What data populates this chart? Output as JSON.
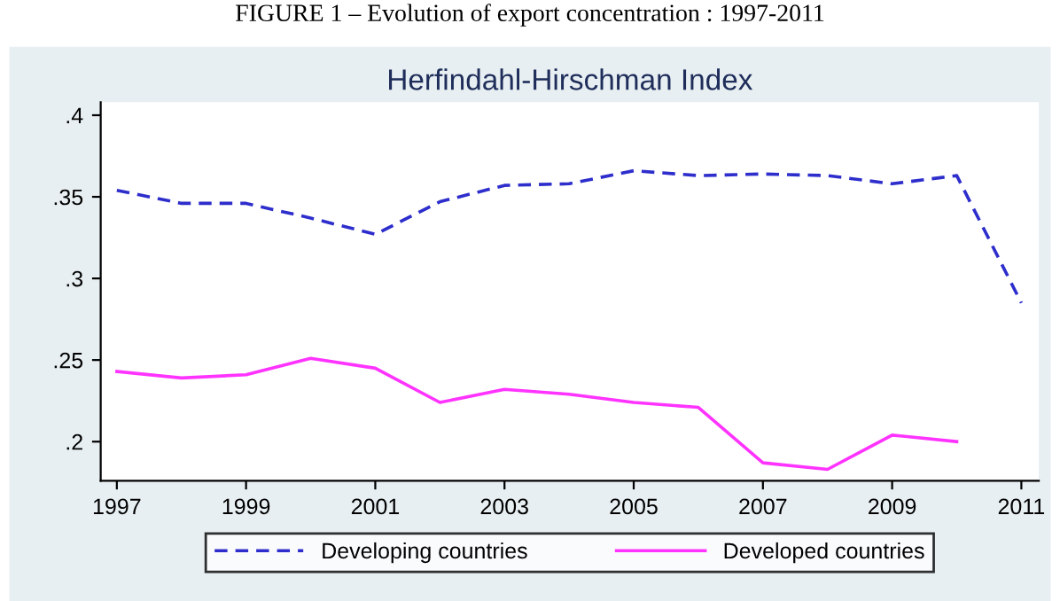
{
  "chart_data": {
    "type": "line",
    "title": "Herfindahl-Hirschman Index",
    "annotations": [
      "FIGURE 1 – Evolution of export concentration : 1997-2011"
    ],
    "x": [
      1997,
      1998,
      1999,
      2000,
      2001,
      2002,
      2003,
      2004,
      2005,
      2006,
      2007,
      2008,
      2009,
      2010,
      2011
    ],
    "series": [
      {
        "name": "Developing countries",
        "color": "#2e2ecc",
        "line_style": "dashed",
        "values": [
          0.354,
          0.346,
          0.346,
          0.337,
          0.327,
          0.347,
          0.357,
          0.358,
          0.366,
          0.363,
          0.364,
          0.363,
          0.358,
          0.363,
          0.285
        ]
      },
      {
        "name": "Developed countries",
        "color": "#ff33ff",
        "line_style": "solid",
        "values": [
          0.243,
          0.239,
          0.241,
          0.251,
          0.245,
          0.224,
          0.232,
          0.229,
          0.224,
          0.221,
          0.187,
          0.183,
          0.204,
          0.2,
          null
        ]
      }
    ],
    "xlim": [
      1996.75,
      2011.27
    ],
    "xticks": [
      1997,
      1999,
      2001,
      2003,
      2005,
      2007,
      2009,
      2011
    ],
    "ylim": [
      0.176,
      0.408
    ],
    "yticks": [
      {
        "value": 0.2,
        "label": ".2"
      },
      {
        "value": 0.25,
        "label": ".25"
      },
      {
        "value": 0.3,
        "label": ".3"
      },
      {
        "value": 0.35,
        "label": ".35"
      },
      {
        "value": 0.4,
        "label": ".4"
      }
    ],
    "grid": false,
    "legend": "bottom",
    "marker": "none"
  }
}
